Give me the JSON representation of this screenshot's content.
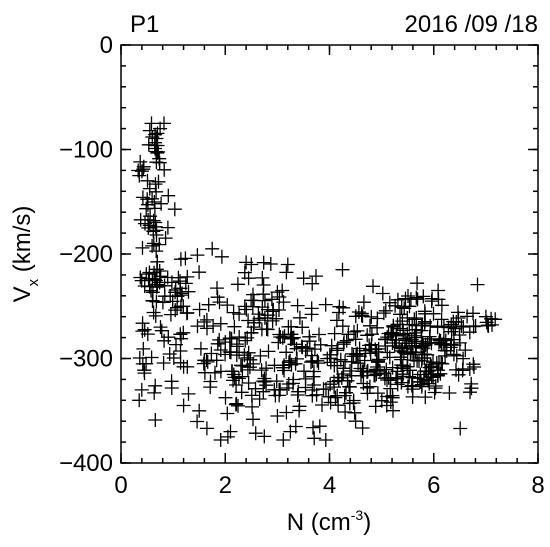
{
  "header": {
    "panel_label": "P1",
    "date": "2016 /09 /18"
  },
  "chart_data": {
    "type": "scatter",
    "marker": "plus",
    "title": "",
    "xlabel": {
      "main": "N (cm",
      "sup": "-3",
      "tail": ")"
    },
    "ylabel": {
      "main": "V",
      "sub": "x",
      "tail": " (km/s)"
    },
    "xlim": [
      0,
      8
    ],
    "ylim": [
      -400,
      0
    ],
    "xticks": [
      0,
      2,
      4,
      6,
      8
    ],
    "yticks": [
      0,
      -100,
      -200,
      -300,
      -400
    ],
    "grid": false,
    "clusters": [
      {
        "cx": 0.62,
        "cy": -185,
        "sx": 0.12,
        "sy": 55,
        "n": 75
      },
      {
        "cx": 0.65,
        "cy": -95,
        "sx": 0.05,
        "sy": 10,
        "n": 8
      },
      {
        "cx": 0.42,
        "cy": -118,
        "sx": 0.08,
        "sy": 6,
        "n": 4
      },
      {
        "cx": 0.5,
        "cy": -300,
        "sx": 0.12,
        "sy": 30,
        "n": 10
      },
      {
        "cx": 1.2,
        "cy": -250,
        "sx": 0.35,
        "sy": 30,
        "n": 50
      },
      {
        "cx": 2.2,
        "cy": -300,
        "sx": 0.45,
        "sy": 30,
        "n": 80
      },
      {
        "cx": 3.3,
        "cy": -300,
        "sx": 0.6,
        "sy": 35,
        "n": 110
      },
      {
        "cx": 4.6,
        "cy": -295,
        "sx": 0.45,
        "sy": 25,
        "n": 55
      },
      {
        "cx": 5.7,
        "cy": -290,
        "sx": 0.5,
        "sy": 25,
        "n": 210
      },
      {
        "cx": 6.7,
        "cy": -268,
        "sx": 0.25,
        "sy": 8,
        "n": 12
      },
      {
        "cx": 2.8,
        "cy": -245,
        "sx": 0.5,
        "sy": 18,
        "n": 30
      },
      {
        "cx": 4.5,
        "cy": -335,
        "sx": 0.6,
        "sy": 12,
        "n": 35
      }
    ],
    "extra_points": [
      {
        "x": 0.35,
        "y": -340
      },
      {
        "x": 0.4,
        "y": -330
      },
      {
        "x": 1.5,
        "y": -350
      },
      {
        "x": 2.05,
        "y": -375
      },
      {
        "x": 2.1,
        "y": -370
      },
      {
        "x": 3.25,
        "y": -370
      },
      {
        "x": 3.0,
        "y": -355
      },
      {
        "x": 4.25,
        "y": -215
      },
      {
        "x": 3.2,
        "y": -210
      },
      {
        "x": 2.4,
        "y": -208
      },
      {
        "x": 2.5,
        "y": -210
      },
      {
        "x": 1.75,
        "y": -195
      },
      {
        "x": 1.15,
        "y": -205
      },
      {
        "x": 7.1,
        "y": -262
      },
      {
        "x": 7.0,
        "y": -260
      },
      {
        "x": 4.5,
        "y": -360
      },
      {
        "x": 1.2,
        "y": -345
      },
      {
        "x": 0.75,
        "y": -80
      },
      {
        "x": 0.6,
        "y": -88
      },
      {
        "x": 6.3,
        "y": -333
      },
      {
        "x": 5.1,
        "y": -345
      }
    ]
  }
}
